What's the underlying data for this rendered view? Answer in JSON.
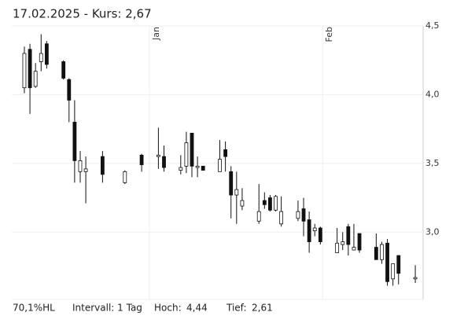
{
  "chart_data": {
    "type": "candlestick",
    "title": "17.02.2025  -  Kurs: 2,67",
    "footer": {
      "range": "70,1%HL",
      "interval": "Intervall: 1 Tag",
      "high_label": "Hoch:",
      "high_value": "4,44",
      "low_label": "Tief:",
      "low_value": "2,61"
    },
    "xlim": [
      -2.25,
      71.4
    ],
    "xticks": [
      {
        "value": 22.4,
        "label": "Jan"
      },
      {
        "value": 53.4,
        "label": "Feb"
      }
    ],
    "ylim": [
      2.51,
      4.5
    ],
    "yticks": [
      {
        "value": 4.5,
        "label": "4,5"
      },
      {
        "value": 4.0,
        "label": "4,0"
      },
      {
        "value": 3.5,
        "label": "3,5"
      },
      {
        "value": 3.0,
        "label": "3,0"
      }
    ],
    "grid": true,
    "up_color": "#ffffff",
    "down_color": "#111111",
    "line_color": "#111111",
    "x": [
      0,
      1,
      2,
      3,
      4,
      7,
      8,
      9,
      10,
      11,
      14,
      18,
      21,
      24,
      25,
      28,
      29,
      30,
      31,
      32,
      35,
      36,
      37,
      38,
      39,
      42,
      43,
      44,
      45,
      46,
      49,
      50,
      51,
      52,
      53,
      56,
      57,
      58,
      59,
      60,
      63,
      64,
      65,
      66,
      67,
      70
    ],
    "open": [
      4.05,
      4.33,
      4.06,
      4.24,
      4.37,
      4.24,
      4.11,
      3.8,
      3.44,
      3.44,
      3.55,
      3.36,
      3.56,
      3.55,
      3.55,
      3.45,
      3.48,
      3.72,
      3.47,
      3.48,
      3.44,
      3.6,
      3.44,
      3.27,
      3.19,
      3.08,
      3.23,
      3.25,
      3.16,
      3.06,
      3.1,
      3.17,
      3.09,
      3.01,
      3.03,
      2.85,
      2.91,
      3.04,
      2.87,
      2.99,
      2.89,
      2.8,
      2.92,
      2.66,
      2.83,
      2.66
    ],
    "high": [
      4.35,
      4.37,
      4.23,
      4.44,
      4.39,
      4.25,
      4.12,
      3.96,
      3.59,
      3.55,
      3.59,
      3.45,
      3.57,
      3.76,
      3.63,
      3.56,
      3.73,
      3.72,
      3.55,
      3.48,
      3.67,
      3.66,
      3.48,
      3.44,
      3.32,
      3.35,
      3.29,
      3.27,
      3.27,
      3.26,
      3.23,
      3.25,
      3.15,
      3.06,
      3.04,
      3.03,
      3.0,
      3.06,
      3.06,
      2.99,
      2.99,
      2.93,
      2.95,
      2.77,
      2.83,
      2.76
    ],
    "low": [
      4.01,
      3.86,
      4.05,
      4.17,
      4.19,
      4.11,
      3.8,
      3.36,
      3.36,
      3.21,
      3.36,
      3.35,
      3.44,
      3.46,
      3.44,
      3.42,
      3.43,
      3.4,
      3.4,
      3.45,
      3.44,
      3.44,
      3.1,
      3.06,
      3.16,
      3.06,
      3.17,
      3.15,
      3.15,
      3.04,
      3.08,
      2.97,
      2.85,
      2.97,
      2.91,
      2.85,
      2.87,
      2.83,
      2.87,
      2.85,
      2.8,
      2.77,
      2.61,
      2.61,
      2.62,
      2.63
    ],
    "close": [
      4.3,
      4.05,
      4.17,
      4.3,
      4.22,
      4.12,
      3.96,
      3.52,
      3.52,
      3.46,
      3.42,
      3.44,
      3.49,
      3.56,
      3.47,
      3.47,
      3.65,
      3.48,
      3.48,
      3.45,
      3.53,
      3.55,
      3.27,
      3.31,
      3.23,
      3.15,
      3.2,
      3.16,
      3.26,
      3.15,
      3.15,
      3.08,
      2.93,
      3.03,
      2.93,
      2.92,
      2.93,
      2.91,
      2.89,
      2.87,
      2.8,
      2.91,
      2.64,
      2.77,
      2.7,
      2.67
    ]
  }
}
